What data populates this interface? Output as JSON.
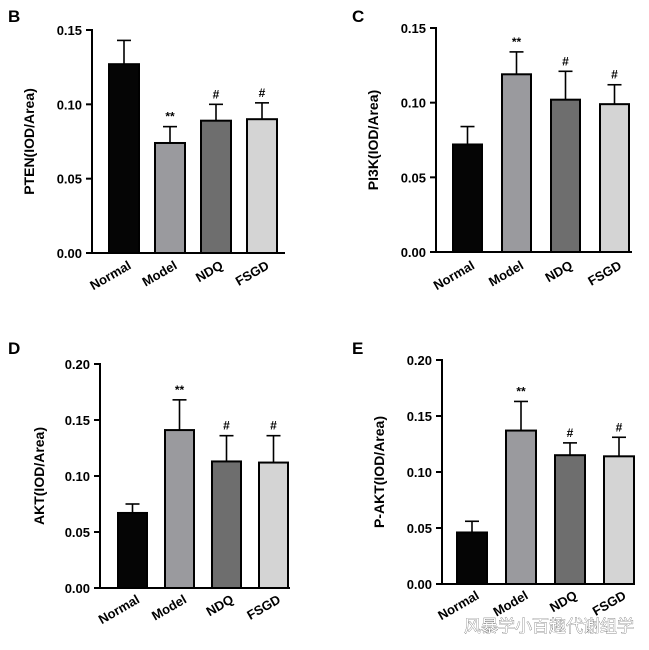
{
  "colors": {
    "Normal": "#050505",
    "Model": "#9a9a9e",
    "NDQ": "#6e6e6e",
    "FSGD": "#d4d4d4"
  },
  "watermark": "风暴学小百趣代谢组学",
  "chart_data": [
    {
      "panel": "B",
      "type": "bar",
      "categories": [
        "Normal",
        "Model",
        "NDQ",
        "FSGD"
      ],
      "values": [
        0.127,
        0.074,
        0.089,
        0.09
      ],
      "errors": [
        0.016,
        0.011,
        0.011,
        0.011
      ],
      "significance": [
        "",
        "**",
        "#",
        "#"
      ],
      "ylabel": "PTEN(IOD/Area)",
      "ylim": [
        0,
        0.15
      ],
      "yticks": [
        "0.00",
        "0.05",
        "0.10",
        "0.15"
      ]
    },
    {
      "panel": "C",
      "type": "bar",
      "categories": [
        "Normal",
        "Model",
        "NDQ",
        "FSGD"
      ],
      "values": [
        0.072,
        0.119,
        0.102,
        0.099
      ],
      "errors": [
        0.012,
        0.015,
        0.019,
        0.013
      ],
      "significance": [
        "",
        "**",
        "#",
        "#"
      ],
      "ylabel": "PI3K(IOD/Area)",
      "ylim": [
        0,
        0.15
      ],
      "yticks": [
        "0.00",
        "0.05",
        "0.10",
        "0.15"
      ]
    },
    {
      "panel": "D",
      "type": "bar",
      "categories": [
        "Normal",
        "Model",
        "NDQ",
        "FSGD"
      ],
      "values": [
        0.067,
        0.141,
        0.113,
        0.112
      ],
      "errors": [
        0.008,
        0.027,
        0.023,
        0.024
      ],
      "significance": [
        "",
        "**",
        "#",
        "#"
      ],
      "ylabel": "AKT(IOD/Area)",
      "ylim": [
        0,
        0.2
      ],
      "yticks": [
        "0.00",
        "0.05",
        "0.10",
        "0.15",
        "0.20"
      ]
    },
    {
      "panel": "E",
      "type": "bar",
      "categories": [
        "Normal",
        "Model",
        "NDQ",
        "FSGD"
      ],
      "values": [
        0.046,
        0.137,
        0.115,
        0.114
      ],
      "errors": [
        0.01,
        0.026,
        0.011,
        0.017
      ],
      "significance": [
        "",
        "**",
        "#",
        "#"
      ],
      "ylabel": "P-AKT(IOD/Area)",
      "ylim": [
        0,
        0.2
      ],
      "yticks": [
        "0.00",
        "0.05",
        "0.10",
        "0.15",
        "0.20"
      ]
    }
  ]
}
